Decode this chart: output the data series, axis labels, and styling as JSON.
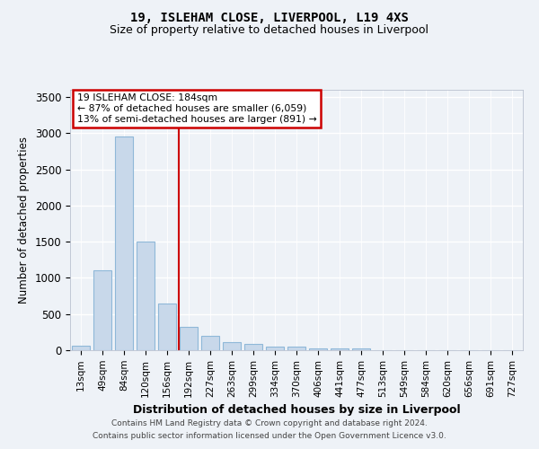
{
  "title1": "19, ISLEHAM CLOSE, LIVERPOOL, L19 4XS",
  "title2": "Size of property relative to detached houses in Liverpool",
  "xlabel": "Distribution of detached houses by size in Liverpool",
  "ylabel": "Number of detached properties",
  "categories": [
    "13sqm",
    "49sqm",
    "84sqm",
    "120sqm",
    "156sqm",
    "192sqm",
    "227sqm",
    "263sqm",
    "299sqm",
    "334sqm",
    "370sqm",
    "406sqm",
    "441sqm",
    "477sqm",
    "513sqm",
    "549sqm",
    "584sqm",
    "620sqm",
    "656sqm",
    "691sqm",
    "727sqm"
  ],
  "values": [
    60,
    1100,
    2950,
    1500,
    650,
    320,
    200,
    110,
    90,
    55,
    45,
    30,
    30,
    30,
    0,
    0,
    0,
    0,
    0,
    0,
    0
  ],
  "bar_color": "#c8d8ea",
  "bar_edge_color": "#8fb8d8",
  "vline_x": 4.55,
  "vline_color": "#cc0000",
  "annotation_title": "19 ISLEHAM CLOSE: 184sqm",
  "annotation_line1": "← 87% of detached houses are smaller (6,059)",
  "annotation_line2": "13% of semi-detached houses are larger (891) →",
  "annotation_box_color": "#ffffff",
  "annotation_box_edge": "#cc0000",
  "footer1": "Contains HM Land Registry data © Crown copyright and database right 2024.",
  "footer2": "Contains public sector information licensed under the Open Government Licence v3.0.",
  "ylim": [
    0,
    3600
  ],
  "yticks": [
    0,
    500,
    1000,
    1500,
    2000,
    2500,
    3000,
    3500
  ],
  "background_color": "#eef2f7"
}
